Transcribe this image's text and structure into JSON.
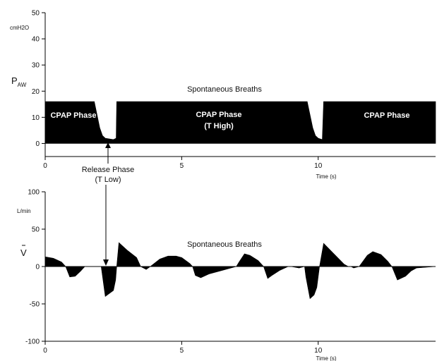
{
  "chart_data": [
    {
      "type": "area",
      "ylabel": "P",
      "ylabel_sub": "AW",
      "unit": "cmH2O",
      "xlabel": "Time (s)",
      "xlim": [
        0,
        14.3
      ],
      "ylim": [
        -5,
        50
      ],
      "xticks": [
        0,
        5,
        10
      ],
      "yticks": [
        0,
        10,
        20,
        30,
        40,
        50
      ],
      "grid": false,
      "series": [
        {
          "x": [
            0,
            1.8,
            2.0,
            2.1,
            2.2,
            2.5,
            2.6,
            2.62,
            9.6,
            9.8,
            9.9,
            10.0,
            10.15,
            10.2,
            14.3
          ],
          "y": [
            16,
            16,
            6,
            3,
            2,
            1.5,
            2,
            16,
            16,
            6,
            3,
            2,
            1.5,
            16,
            16
          ]
        }
      ],
      "annotations": [
        {
          "text": "CPAP Phase",
          "x": 1.0,
          "y": 10
        },
        {
          "text": "CPAP Phase",
          "x": 6.3,
          "y": 10.5
        },
        {
          "text": "(T High)",
          "x": 6.3,
          "y": 6.5
        },
        {
          "text": "CPAP Phase",
          "x": 12.2,
          "y": 10
        },
        {
          "text": "Spontaneous Breaths",
          "x": 7.0,
          "y": 20.5
        }
      ],
      "release_label": [
        "Release Phase",
        "(T Low)"
      ]
    },
    {
      "type": "area",
      "ylabel": "V",
      "unit": "L/min",
      "xlabel": "Time (s)",
      "xlim": [
        0,
        14.3
      ],
      "ylim": [
        -100,
        100
      ],
      "xticks": [
        0,
        5,
        10
      ],
      "yticks": [
        -100,
        -50,
        0,
        50,
        100
      ],
      "grid": false,
      "series": [
        {
          "x": [
            0,
            0.3,
            0.6,
            0.75,
            0.9,
            1.1,
            1.3,
            1.45,
            1.6,
            2.0,
            2.05,
            2.2,
            2.5,
            2.58,
            2.62,
            2.7,
            3.0,
            3.35,
            3.5,
            3.7,
            3.85,
            4.2,
            4.5,
            4.8,
            5.0,
            5.3,
            5.4,
            5.5,
            5.7,
            6.0,
            6.5,
            7.0,
            7.1,
            7.3,
            7.5,
            7.8,
            8.0,
            8.15,
            8.3,
            8.6,
            8.9,
            9.0,
            9.3,
            9.5,
            9.55,
            9.7,
            9.85,
            9.95,
            10.05,
            10.2,
            10.6,
            10.95,
            11.1,
            11.2,
            11.3,
            11.5,
            11.8,
            12.0,
            12.3,
            12.55,
            12.7,
            12.9,
            13.2,
            13.4,
            13.6,
            14.3
          ],
          "y": [
            13,
            11,
            6,
            0,
            -14,
            -13,
            -6,
            0,
            0,
            0,
            0,
            -40,
            -32,
            -18,
            0,
            32,
            22,
            12,
            0,
            -4,
            0,
            10,
            14,
            14,
            12,
            4,
            0,
            -12,
            -15,
            -10,
            -5,
            0,
            6,
            17,
            15,
            8,
            0,
            -16,
            -12,
            -5,
            0,
            0,
            -2,
            0,
            -14,
            -43,
            -38,
            -28,
            0,
            31,
            16,
            3,
            0,
            0,
            -2,
            0,
            15,
            20,
            16,
            7,
            0,
            -18,
            -13,
            -6,
            -2,
            0
          ]
        }
      ],
      "annotations": [
        {
          "text": "Spontaneous Breaths",
          "x": 7.2,
          "y": 35
        }
      ]
    }
  ]
}
